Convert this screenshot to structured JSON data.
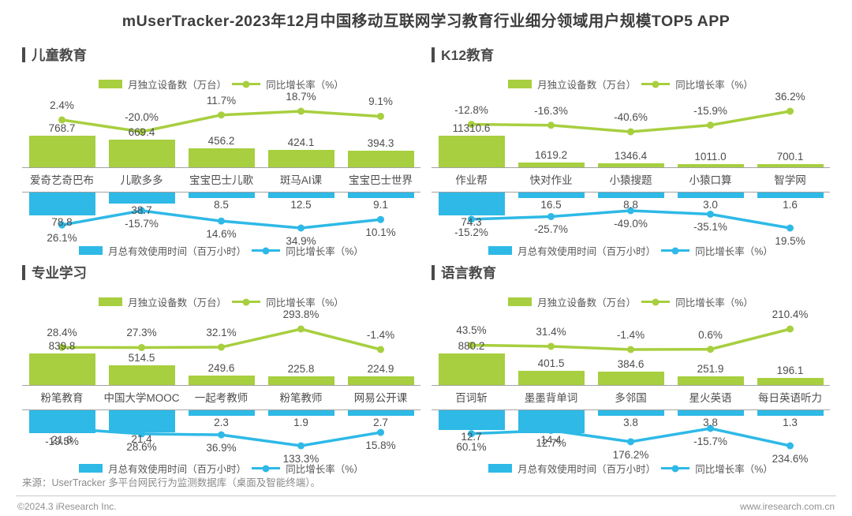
{
  "page": {
    "title": "mUserTracker-2023年12月中国移动互联网学习教育行业细分领域用户规模TOP5 APP"
  },
  "colors": {
    "green": "#a7cf3f",
    "blue": "#2eb9e6",
    "text_dark": "#4a4a4a",
    "axis_gray": "#a3a3a3"
  },
  "legend": {
    "devices_label": "月独立设备数（万台）",
    "growth_label": "同比增长率（%）",
    "time_label": "月总有效使用时间（百万小时）"
  },
  "footer": {
    "source": "来源：UserTracker 多平台网民行为监测数据库（桌面及智能终端）。",
    "copyright": "©2024.3 iResearch Inc.",
    "website": "www.iresearch.com.cn"
  },
  "chart_data": [
    {
      "type": "bar+line",
      "section": "儿童教育",
      "legend_top": [
        "月独立设备数（万台）",
        "同比增长率（%）"
      ],
      "legend_bottom": [
        "月总有效使用时间（百万小时）",
        "同比增长率（%）"
      ],
      "categories": [
        "爱奇艺奇巴布",
        "儿歌多多",
        "宝宝巴士儿歌",
        "斑马AI课",
        "宝宝巴士世界"
      ],
      "series": [
        {
          "name": "月独立设备数（万台）",
          "kind": "bar",
          "color": "green",
          "values": [
            768.7,
            669.4,
            456.2,
            424.1,
            394.3
          ]
        },
        {
          "name": "同比增长率（%）",
          "kind": "line",
          "color": "green",
          "values": [
            2.4,
            -20.0,
            11.7,
            18.7,
            9.1
          ]
        },
        {
          "name": "月总有效使用时间（百万小时）",
          "kind": "bar",
          "color": "blue",
          "values": [
            78.8,
            38.7,
            8.5,
            12.5,
            9.1
          ]
        },
        {
          "name": "同比增长率（%）",
          "kind": "line",
          "color": "blue",
          "values": [
            26.1,
            -15.7,
            14.6,
            34.9,
            10.1
          ]
        }
      ]
    },
    {
      "type": "bar+line",
      "section": "K12教育",
      "legend_top": [
        "月独立设备数（万台）",
        "同比增长率（%）"
      ],
      "legend_bottom": [
        "月总有效使用时间（百万小时）",
        "同比增长率（%）"
      ],
      "categories": [
        "作业帮",
        "快对作业",
        "小猿搜题",
        "小猿口算",
        "智学网"
      ],
      "series": [
        {
          "name": "月独立设备数（万台）",
          "kind": "bar",
          "color": "green",
          "values": [
            11310.6,
            1619.2,
            1346.4,
            1011.0,
            700.1
          ]
        },
        {
          "name": "同比增长率（%）",
          "kind": "line",
          "color": "green",
          "values": [
            -12.8,
            -16.3,
            -40.6,
            -15.9,
            36.2
          ]
        },
        {
          "name": "月总有效使用时间（百万小时）",
          "kind": "bar",
          "color": "blue",
          "values": [
            74.3,
            16.5,
            8.8,
            3.0,
            1.6
          ]
        },
        {
          "name": "同比增长率（%）",
          "kind": "line",
          "color": "blue",
          "values": [
            -15.2,
            -25.7,
            -49.0,
            -35.1,
            19.5
          ]
        }
      ]
    },
    {
      "type": "bar+line",
      "section": "专业学习",
      "legend_top": [
        "月独立设备数（万台）",
        "同比增长率（%）"
      ],
      "legend_bottom": [
        "月总有效使用时间（百万小时）",
        "同比增长率（%）"
      ],
      "categories": [
        "粉笔教育",
        "中国大学MOOC",
        "一起考教师",
        "粉笔教师",
        "网易公开课"
      ],
      "series": [
        {
          "name": "月独立设备数（万台）",
          "kind": "bar",
          "color": "green",
          "values": [
            839.8,
            514.5,
            249.6,
            225.8,
            224.9
          ]
        },
        {
          "name": "同比增长率（%）",
          "kind": "line",
          "color": "green",
          "values": [
            28.4,
            27.3,
            32.1,
            293.8,
            -1.4
          ]
        },
        {
          "name": "月总有效使用时间（百万小时）",
          "kind": "bar",
          "color": "blue",
          "values": [
            21.8,
            21.4,
            2.3,
            1.9,
            2.7
          ]
        },
        {
          "name": "同比增长率（%）",
          "kind": "line",
          "color": "blue",
          "values": [
            -19.5,
            28.6,
            36.9,
            133.3,
            15.8
          ]
        }
      ]
    },
    {
      "type": "bar+line",
      "section": "语言教育",
      "legend_top": [
        "月独立设备数（万台）",
        "同比增长率（%）"
      ],
      "legend_bottom": [
        "月总有效使用时间（百万小时）",
        "同比增长率（%）"
      ],
      "categories": [
        "百词斩",
        "墨墨背单词",
        "多邻国",
        "星火英语",
        "每日英语听力"
      ],
      "series": [
        {
          "name": "月独立设备数（万台）",
          "kind": "bar",
          "color": "green",
          "values": [
            880.2,
            401.5,
            384.6,
            251.9,
            196.1
          ]
        },
        {
          "name": "同比增长率（%）",
          "kind": "line",
          "color": "green",
          "values": [
            43.5,
            31.4,
            -1.4,
            0.6,
            210.4
          ]
        },
        {
          "name": "月总有效使用时间（百万小时）",
          "kind": "bar",
          "color": "blue",
          "values": [
            12.7,
            14.4,
            3.8,
            3.8,
            1.3
          ]
        },
        {
          "name": "同比增长率（%）",
          "kind": "line",
          "color": "blue",
          "values": [
            60.1,
            12.7,
            176.2,
            -15.7,
            234.6
          ]
        }
      ]
    }
  ]
}
